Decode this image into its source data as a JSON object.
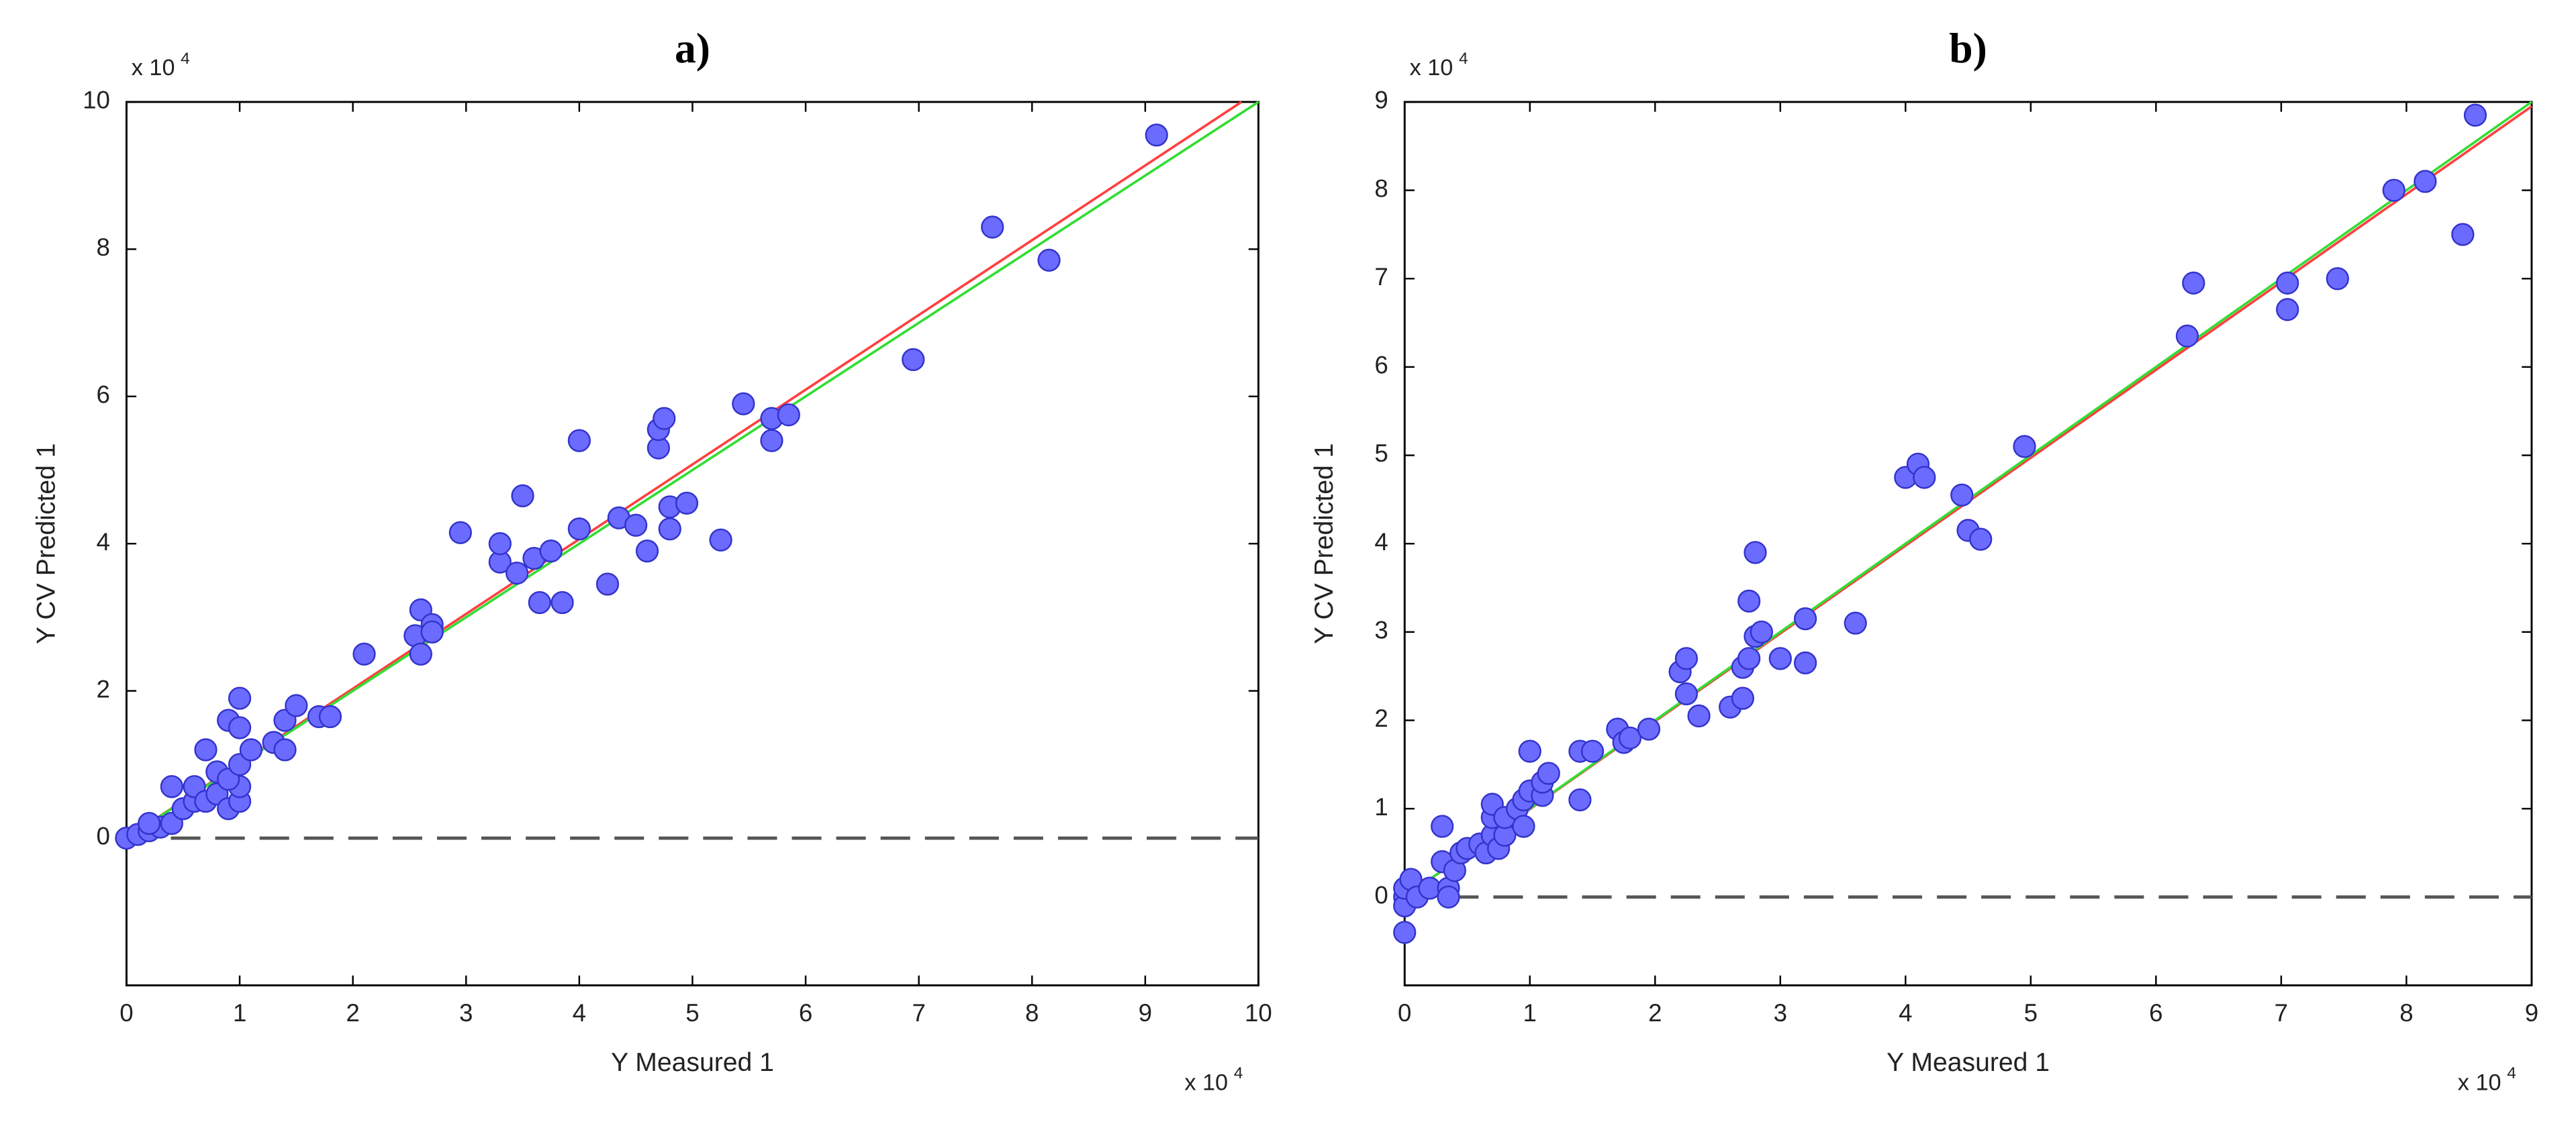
{
  "chart_data": [
    {
      "type": "scatter",
      "title": "a)",
      "xlabel": "Y Measured 1",
      "ylabel": "Y CV Predicted 1",
      "axis_multiplier": "x 10",
      "axis_multiplier_exp": "4",
      "xlim": [
        0,
        10
      ],
      "ylim": [
        -2,
        10
      ],
      "xticks": [
        0,
        1,
        2,
        3,
        4,
        5,
        6,
        7,
        8,
        9,
        10
      ],
      "yticks": [
        0,
        2,
        4,
        6,
        8,
        10
      ],
      "marker_color": "#6b6bff",
      "marker_edge": "#3333cc",
      "series": [
        {
          "x": [
            0,
            0.1,
            0.2,
            0.3,
            0.4,
            0.2,
            0.5,
            0.6,
            0.4,
            0.6,
            0.7,
            0.8,
            0.9,
            1.0,
            0.8,
            1.0,
            0.9,
            1.0,
            1.1,
            0.7,
            0.9,
            1.0,
            1.0,
            1.3,
            1.4,
            1.4,
            1.5,
            1.7,
            1.8,
            2.1,
            2.55,
            2.6,
            2.6,
            2.7,
            2.7,
            2.95,
            3.3,
            3.3,
            3.45,
            3.5,
            3.6,
            3.65,
            3.75,
            3.85,
            4.0,
            4.0,
            4.25,
            4.35,
            4.5,
            4.6,
            4.7,
            4.7,
            4.75,
            4.8,
            4.8,
            4.95,
            5.25,
            5.45,
            5.7,
            5.7,
            5.85,
            6.95,
            7.65,
            8.15,
            9.1
          ],
          "values": [
            0,
            0.05,
            0.1,
            0.15,
            0.2,
            0.2,
            0.4,
            0.5,
            0.7,
            0.7,
            0.5,
            0.6,
            0.4,
            0.5,
            0.9,
            0.7,
            0.8,
            1.0,
            1.2,
            1.2,
            1.6,
            1.5,
            1.9,
            1.3,
            1.2,
            1.6,
            1.8,
            1.65,
            1.65,
            2.5,
            2.75,
            3.1,
            2.5,
            2.9,
            2.8,
            4.15,
            3.75,
            4.0,
            3.6,
            4.65,
            3.8,
            3.2,
            3.9,
            3.2,
            5.4,
            4.2,
            3.45,
            4.35,
            4.25,
            3.9,
            5.3,
            5.55,
            5.7,
            4.5,
            4.2,
            4.55,
            4.05,
            5.9,
            5.7,
            5.4,
            5.75,
            6.5,
            8.3,
            7.85,
            9.55
          ]
        }
      ],
      "lines": [
        {
          "color": "#ff4040",
          "x": [
            0,
            9.85
          ],
          "values": [
            0,
            10
          ]
        },
        {
          "color": "#33dd33",
          "x": [
            0,
            10
          ],
          "values": [
            0,
            10
          ]
        }
      ],
      "hline": {
        "value": 0,
        "color": "#555555",
        "dashed": true
      }
    },
    {
      "type": "scatter",
      "title": "b)",
      "xlabel": "Y Measured 1",
      "ylabel": "Y CV Predicted 1",
      "axis_multiplier": "x 10",
      "axis_multiplier_exp": "4",
      "xlim": [
        0,
        9
      ],
      "ylim": [
        -1,
        9
      ],
      "xticks": [
        0,
        1,
        2,
        3,
        4,
        5,
        6,
        7,
        8,
        9
      ],
      "yticks": [
        0,
        1,
        2,
        3,
        4,
        5,
        6,
        7,
        8,
        9
      ],
      "marker_color": "#6b6bff",
      "marker_edge": "#3333cc",
      "series": [
        {
          "x": [
            0,
            0,
            0,
            0,
            0.05,
            0.1,
            0.2,
            0.3,
            0.3,
            0.35,
            0.35,
            0.4,
            0.45,
            0.5,
            0.6,
            0.65,
            0.7,
            0.7,
            0.7,
            0.75,
            0.8,
            0.8,
            0.9,
            0.95,
            0.95,
            1.0,
            1.0,
            1.1,
            1.1,
            1.15,
            1.4,
            1.4,
            1.5,
            1.7,
            1.75,
            1.8,
            1.95,
            2.2,
            2.25,
            2.25,
            2.35,
            2.6,
            2.7,
            2.7,
            2.75,
            2.75,
            2.8,
            2.8,
            2.85,
            3.0,
            3.2,
            3.2,
            3.6,
            4.0,
            4.1,
            4.15,
            4.45,
            4.5,
            4.6,
            4.95,
            6.25,
            6.3,
            7.05,
            7.05,
            7.45,
            7.9,
            8.15,
            8.45,
            8.55
          ],
          "values": [
            0,
            -0.4,
            -0.1,
            0.1,
            0.2,
            0,
            0.1,
            0.4,
            0.8,
            0.1,
            0,
            0.3,
            0.5,
            0.55,
            0.6,
            0.5,
            0.7,
            0.9,
            1.05,
            0.55,
            0.7,
            0.9,
            1.0,
            0.8,
            1.1,
            1.2,
            1.65,
            1.15,
            1.3,
            1.4,
            1.1,
            1.65,
            1.65,
            1.9,
            1.75,
            1.8,
            1.9,
            2.55,
            2.7,
            2.3,
            2.05,
            2.15,
            2.25,
            2.6,
            2.7,
            3.35,
            2.95,
            3.9,
            3.0,
            2.7,
            3.15,
            2.65,
            3.1,
            4.75,
            4.9,
            4.75,
            4.55,
            4.15,
            4.05,
            5.1,
            6.35,
            6.95,
            6.95,
            6.65,
            7.0,
            8.0,
            8.1,
            7.5,
            8.85
          ]
        }
      ],
      "lines": [
        {
          "color": "#ff4040",
          "x": [
            0,
            9
          ],
          "values": [
            0,
            8.95
          ]
        },
        {
          "color": "#33dd33",
          "x": [
            0,
            9
          ],
          "values": [
            0,
            9
          ]
        }
      ],
      "hline": {
        "value": 0,
        "color": "#555555",
        "dashed": true
      }
    }
  ]
}
